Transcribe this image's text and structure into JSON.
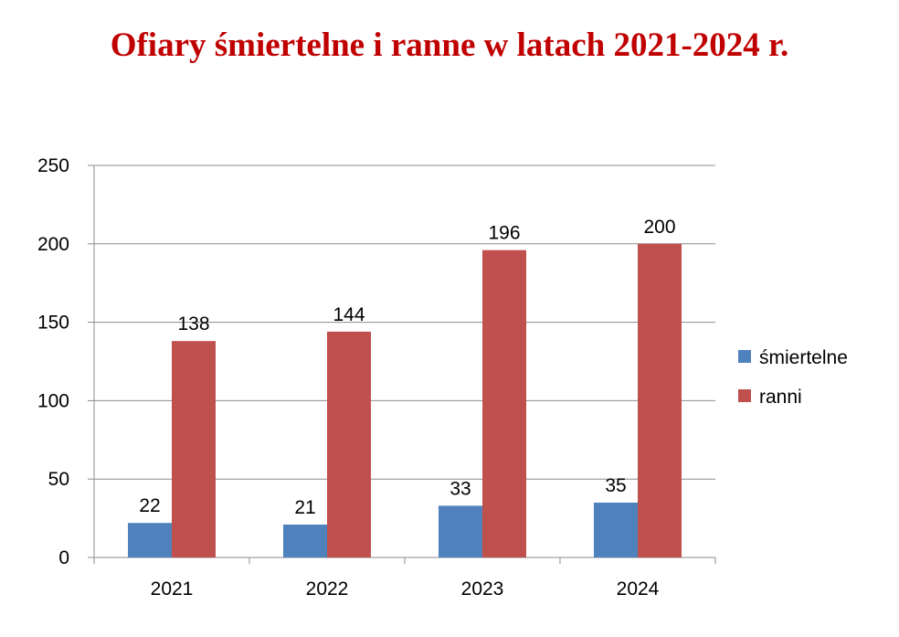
{
  "chart_data": {
    "type": "bar",
    "title": "Ofiary śmiertelne i ranne w latach 2021-2024 r.",
    "categories": [
      "2021",
      "2022",
      "2023",
      "2024"
    ],
    "series": [
      {
        "name": "śmiertelne",
        "values": [
          22,
          21,
          33,
          35
        ],
        "color": "#4f81bd"
      },
      {
        "name": "ranni",
        "values": [
          138,
          144,
          196,
          200
        ],
        "color": "#c0504d"
      }
    ],
    "ylim": [
      0,
      250
    ],
    "yticks": [
      0,
      50,
      100,
      150,
      200,
      250
    ],
    "grid": true,
    "legend_position": "right",
    "data_labels": true
  },
  "colors": {
    "title": "#c00000",
    "grid": "#8c8c8c"
  }
}
